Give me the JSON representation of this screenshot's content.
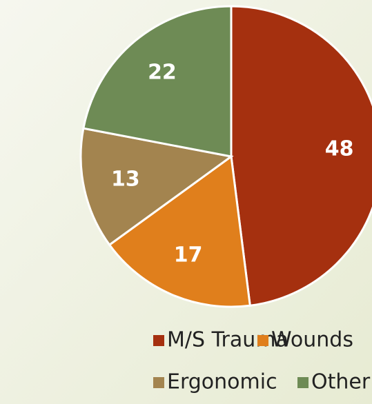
{
  "chart_data": {
    "type": "pie",
    "categories": [
      "M/S Trauma",
      "Wounds",
      "Ergonomic",
      "Other"
    ],
    "values": [
      48,
      17,
      13,
      22
    ],
    "colors": [
      "#a5300f",
      "#e07f1c",
      "#a3844f",
      "#6e8b55"
    ],
    "legend": "bottom"
  }
}
